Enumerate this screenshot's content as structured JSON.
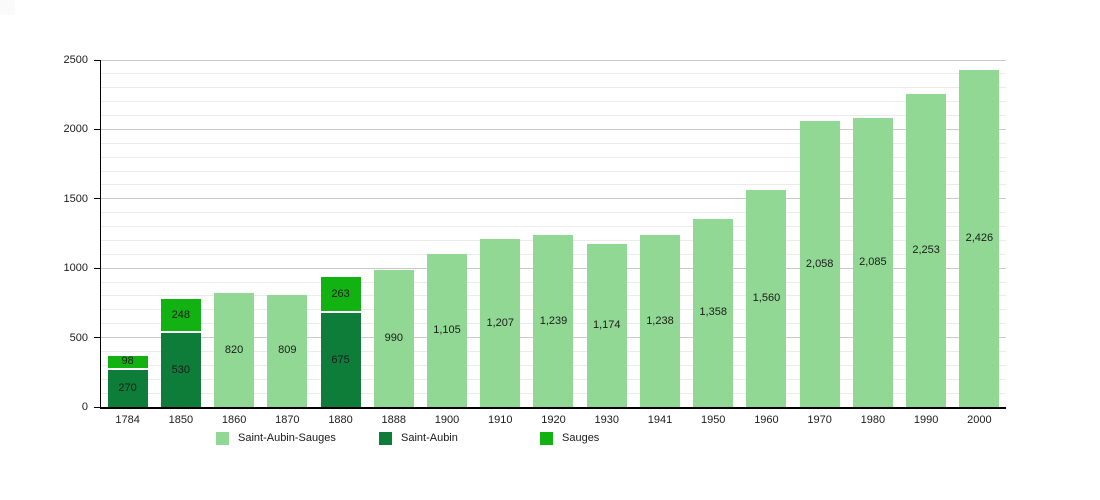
{
  "chart_data": {
    "type": "bar",
    "stacked": true,
    "title": "",
    "xlabel": "",
    "ylabel": "",
    "grid": "on",
    "legend_position": "bottom",
    "y_axis": {
      "min": 0,
      "max": 2500,
      "major_step": 500,
      "minor_step": 100,
      "tick_labels": [
        "0",
        "500",
        "1000",
        "1500",
        "2000",
        "2500"
      ]
    },
    "categories": [
      "1784",
      "1850",
      "1860",
      "1870",
      "1880",
      "1888",
      "1900",
      "1910",
      "1920",
      "1930",
      "1941",
      "1950",
      "1960",
      "1970",
      "1980",
      "1990",
      "2000"
    ],
    "series_colors": {
      "Saint-Aubin-Sauges": "#90d893",
      "Saint-Aubin": "#0e7d3a",
      "Sauges": "#12b212"
    },
    "legend": [
      {
        "label": "Saint-Aubin-Sauges",
        "color": "#90d893"
      },
      {
        "label": "Saint-Aubin",
        "color": "#0e7d3a"
      },
      {
        "label": "Sauges",
        "color": "#12b212"
      }
    ],
    "bars": [
      {
        "year": "1784",
        "segments": [
          {
            "series": "Saint-Aubin",
            "value": 270
          },
          {
            "series": "Sauges",
            "value": 98
          }
        ]
      },
      {
        "year": "1850",
        "segments": [
          {
            "series": "Saint-Aubin",
            "value": 530
          },
          {
            "series": "Sauges",
            "value": 248
          }
        ]
      },
      {
        "year": "1860",
        "segments": [
          {
            "series": "Saint-Aubin-Sauges",
            "value": 820
          }
        ]
      },
      {
        "year": "1870",
        "segments": [
          {
            "series": "Saint-Aubin-Sauges",
            "value": 809
          }
        ]
      },
      {
        "year": "1880",
        "segments": [
          {
            "series": "Saint-Aubin",
            "value": 675
          },
          {
            "series": "Sauges",
            "value": 263
          }
        ]
      },
      {
        "year": "1888",
        "segments": [
          {
            "series": "Saint-Aubin-Sauges",
            "value": 990
          }
        ]
      },
      {
        "year": "1900",
        "segments": [
          {
            "series": "Saint-Aubin-Sauges",
            "value": 1105
          }
        ]
      },
      {
        "year": "1910",
        "segments": [
          {
            "series": "Saint-Aubin-Sauges",
            "value": 1207
          }
        ]
      },
      {
        "year": "1920",
        "segments": [
          {
            "series": "Saint-Aubin-Sauges",
            "value": 1239
          }
        ]
      },
      {
        "year": "1930",
        "segments": [
          {
            "series": "Saint-Aubin-Sauges",
            "value": 1174
          }
        ]
      },
      {
        "year": "1941",
        "segments": [
          {
            "series": "Saint-Aubin-Sauges",
            "value": 1238
          }
        ]
      },
      {
        "year": "1950",
        "segments": [
          {
            "series": "Saint-Aubin-Sauges",
            "value": 1358
          }
        ]
      },
      {
        "year": "1960",
        "segments": [
          {
            "series": "Saint-Aubin-Sauges",
            "value": 1560
          }
        ]
      },
      {
        "year": "1970",
        "segments": [
          {
            "series": "Saint-Aubin-Sauges",
            "value": 2058
          }
        ]
      },
      {
        "year": "1980",
        "segments": [
          {
            "series": "Saint-Aubin-Sauges",
            "value": 2085
          }
        ]
      },
      {
        "year": "1990",
        "segments": [
          {
            "series": "Saint-Aubin-Sauges",
            "value": 2253
          }
        ]
      },
      {
        "year": "2000",
        "segments": [
          {
            "series": "Saint-Aubin-Sauges",
            "value": 2426
          }
        ]
      }
    ]
  }
}
